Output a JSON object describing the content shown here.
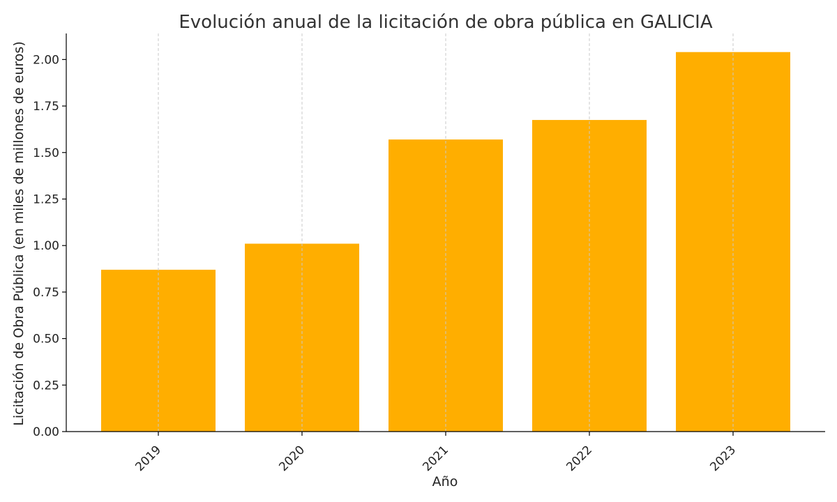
{
  "chart_data": {
    "type": "bar",
    "title": "Evolución anual de la licitación de obra pública en GALICIA",
    "xlabel": "Año",
    "ylabel": "Licitación de Obra Pública (en miles de millones de euros)",
    "categories": [
      "2019",
      "2020",
      "2021",
      "2022",
      "2023"
    ],
    "values": [
      0.87,
      1.01,
      1.57,
      1.675,
      2.04
    ],
    "ylim": [
      0,
      2.14
    ],
    "yticks": [
      "0.00",
      "0.25",
      "0.50",
      "0.75",
      "1.00",
      "1.25",
      "1.50",
      "1.75",
      "2.00"
    ],
    "bar_color": "#FFAE00",
    "grid": "vertical-dashed",
    "legend": "none"
  }
}
